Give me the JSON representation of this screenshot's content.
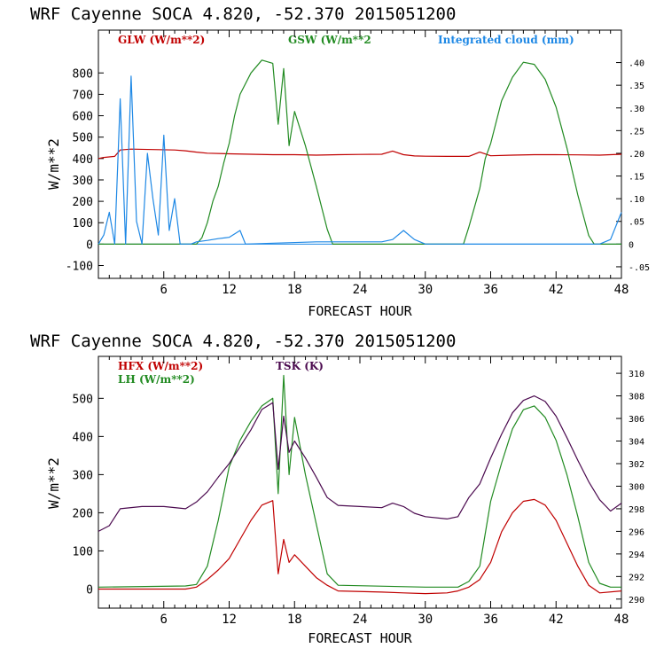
{
  "chart_data": [
    {
      "type": "line",
      "title": "WRF   Cayenne SOCA   4.820, -52.370  2015051200",
      "xlabel": "FORECAST HOUR",
      "ylabel": "W/m**2",
      "xlim": [
        0,
        48
      ],
      "ylim": [
        -160,
        1000
      ],
      "y2lim": [
        -0.0755,
        0.4714
      ],
      "xticks": [
        "6",
        "12",
        "18",
        "24",
        "30",
        "36",
        "42",
        "48"
      ],
      "yticks": [
        "800",
        "700",
        "600",
        "500",
        "400",
        "300",
        "200",
        "100",
        "0",
        "-100"
      ],
      "y2ticks": [
        ".40",
        ".35",
        ".30",
        ".25",
        ".20",
        ".15",
        ".10",
        ".05",
        "0",
        "-.05"
      ],
      "grid": false,
      "legend": "top",
      "series": [
        {
          "name": "GLW (W/m**2)",
          "axis": "left",
          "color": "#c00000",
          "x": [
            0,
            0.5,
            1.5,
            2,
            3,
            5,
            7,
            8,
            9,
            10,
            12,
            14,
            16,
            18,
            20,
            22,
            24,
            26,
            27,
            28,
            29,
            30,
            32,
            34,
            35,
            36,
            38,
            40,
            42,
            44,
            46,
            48
          ],
          "y": [
            400,
            405,
            410,
            440,
            444,
            442,
            440,
            436,
            430,
            425,
            422,
            420,
            418,
            418,
            416,
            418,
            419,
            420,
            435,
            418,
            412,
            411,
            410,
            410,
            430,
            413,
            416,
            418,
            418,
            417,
            416,
            420
          ]
        },
        {
          "name": "GSW (W/m**2",
          "axis": "left",
          "color": "#228b22",
          "x": [
            0,
            9,
            9.5,
            10,
            10.5,
            11,
            11.5,
            12,
            12.5,
            13,
            14,
            15,
            16,
            16.5,
            17,
            17.5,
            18,
            19,
            20,
            21,
            21.5,
            33.5,
            34,
            35,
            35.5,
            36,
            37,
            38,
            39,
            40,
            41,
            42,
            43,
            44,
            45,
            45.5,
            48
          ],
          "y": [
            0,
            0,
            30,
            100,
            200,
            270,
            380,
            470,
            600,
            700,
            800,
            860,
            845,
            560,
            820,
            460,
            620,
            460,
            270,
            70,
            0,
            0,
            80,
            260,
            400,
            470,
            670,
            780,
            850,
            840,
            770,
            640,
            450,
            230,
            40,
            0,
            0
          ]
        },
        {
          "name": "Integrated cloud (mm)",
          "axis": "right",
          "color": "#1e88e5",
          "x": [
            0,
            0.5,
            1,
            1.5,
            2,
            2.5,
            3,
            3.5,
            4,
            4.5,
            5,
            5.5,
            6,
            6.5,
            7,
            7.5,
            8,
            8.5,
            9,
            10,
            11,
            12,
            13,
            13.5,
            20,
            26,
            27,
            28,
            29,
            30,
            31,
            44,
            45,
            46,
            47,
            48
          ],
          "y": [
            0,
            0.02,
            0.07,
            0.0,
            0.32,
            0.0,
            0.37,
            0.05,
            0.0,
            0.2,
            0.1,
            0.02,
            0.24,
            0.03,
            0.1,
            0.0,
            0.0,
            0.0,
            0.005,
            0.008,
            0.012,
            0.015,
            0.03,
            0.0,
            0.005,
            0.005,
            0.01,
            0.03,
            0.01,
            0.0,
            0.0,
            0.0,
            0.0,
            0.0,
            0.01,
            0.07
          ]
        }
      ]
    },
    {
      "type": "line",
      "title": "WRF   Cayenne SOCA   4.820, -52.370  2015051200",
      "xlabel": "FORECAST HOUR",
      "ylabel": "W/m**2",
      "xlim": [
        0,
        48
      ],
      "ylim": [
        -50,
        610
      ],
      "y2lim": [
        289.2,
        311.5
      ],
      "xticks": [
        "6",
        "12",
        "18",
        "24",
        "30",
        "36",
        "42",
        "48"
      ],
      "yticks": [
        "500",
        "400",
        "300",
        "200",
        "100",
        "0"
      ],
      "y2ticks": [
        "310",
        "308",
        "306",
        "304",
        "302",
        "300",
        "298",
        "296",
        "294",
        "292",
        "290"
      ],
      "grid": false,
      "legend": "top-left",
      "series": [
        {
          "name": "HFX (W/m**2)",
          "axis": "left",
          "color": "#c00000",
          "x": [
            0,
            8,
            9,
            10,
            11,
            12,
            13,
            14,
            15,
            16,
            16.5,
            17,
            17.5,
            18,
            19,
            20,
            21,
            22,
            26,
            28,
            30,
            32,
            33,
            34,
            35,
            36,
            37,
            38,
            39,
            40,
            41,
            42,
            43,
            44,
            45,
            46,
            48
          ],
          "y": [
            0,
            0,
            5,
            25,
            50,
            80,
            130,
            180,
            220,
            232,
            40,
            130,
            70,
            90,
            60,
            30,
            10,
            -5,
            -8,
            -10,
            -12,
            -10,
            -5,
            5,
            25,
            70,
            150,
            200,
            230,
            235,
            220,
            180,
            120,
            60,
            10,
            -10,
            -5
          ]
        },
        {
          "name": "LH  (W/m**2)",
          "axis": "left",
          "color": "#228b22",
          "x": [
            0,
            8,
            9,
            10,
            11,
            12,
            13,
            14,
            15,
            16,
            16.5,
            17,
            17.5,
            18,
            19,
            20,
            21,
            22,
            30,
            33,
            34,
            35,
            36,
            37,
            38,
            39,
            40,
            41,
            42,
            43,
            44,
            45,
            46,
            47,
            48
          ],
          "y": [
            5,
            8,
            12,
            60,
            180,
            320,
            390,
            440,
            480,
            500,
            250,
            560,
            300,
            450,
            300,
            170,
            40,
            10,
            5,
            5,
            20,
            60,
            230,
            330,
            420,
            470,
            480,
            450,
            390,
            300,
            190,
            70,
            15,
            5,
            5
          ]
        },
        {
          "name": "TSK (K)",
          "axis": "right",
          "color": "#4b0a4f",
          "x": [
            0,
            1,
            2,
            4,
            6,
            8,
            9,
            10,
            11,
            12,
            13,
            14,
            15,
            16,
            16.5,
            17,
            17.5,
            18,
            19,
            20,
            21,
            22,
            24,
            26,
            27,
            28,
            29,
            30,
            32,
            33,
            34,
            35,
            36,
            37,
            38,
            39,
            40,
            41,
            42,
            43,
            44,
            45,
            46,
            47,
            48
          ],
          "y": [
            296.0,
            296.5,
            298.0,
            298.2,
            298.2,
            298.0,
            298.6,
            299.5,
            300.8,
            302.0,
            303.5,
            305.0,
            306.8,
            307.4,
            301.5,
            306.2,
            303.0,
            304.0,
            302.5,
            300.8,
            299.0,
            298.3,
            298.2,
            298.1,
            298.5,
            298.2,
            297.6,
            297.3,
            297.1,
            297.3,
            299.0,
            300.2,
            302.5,
            304.6,
            306.5,
            307.6,
            308.0,
            307.5,
            306.2,
            304.3,
            302.3,
            300.4,
            298.8,
            297.8,
            298.5
          ]
        }
      ]
    }
  ],
  "panels": [
    {
      "title": "WRF   Cayenne SOCA   4.820, -52.370  2015051200",
      "xlabel": "FORECAST HOUR",
      "ylabel": "W/m**2",
      "legend": [
        "GLW (W/m**2)",
        "GSW (W/m**2",
        "Integrated cloud (mm)"
      ]
    },
    {
      "title": "WRF   Cayenne SOCA   4.820, -52.370  2015051200",
      "xlabel": "FORECAST HOUR",
      "ylabel": "W/m**2",
      "legend": [
        "HFX (W/m**2)",
        "LH  (W/m**2)",
        "TSK (K)"
      ]
    }
  ]
}
